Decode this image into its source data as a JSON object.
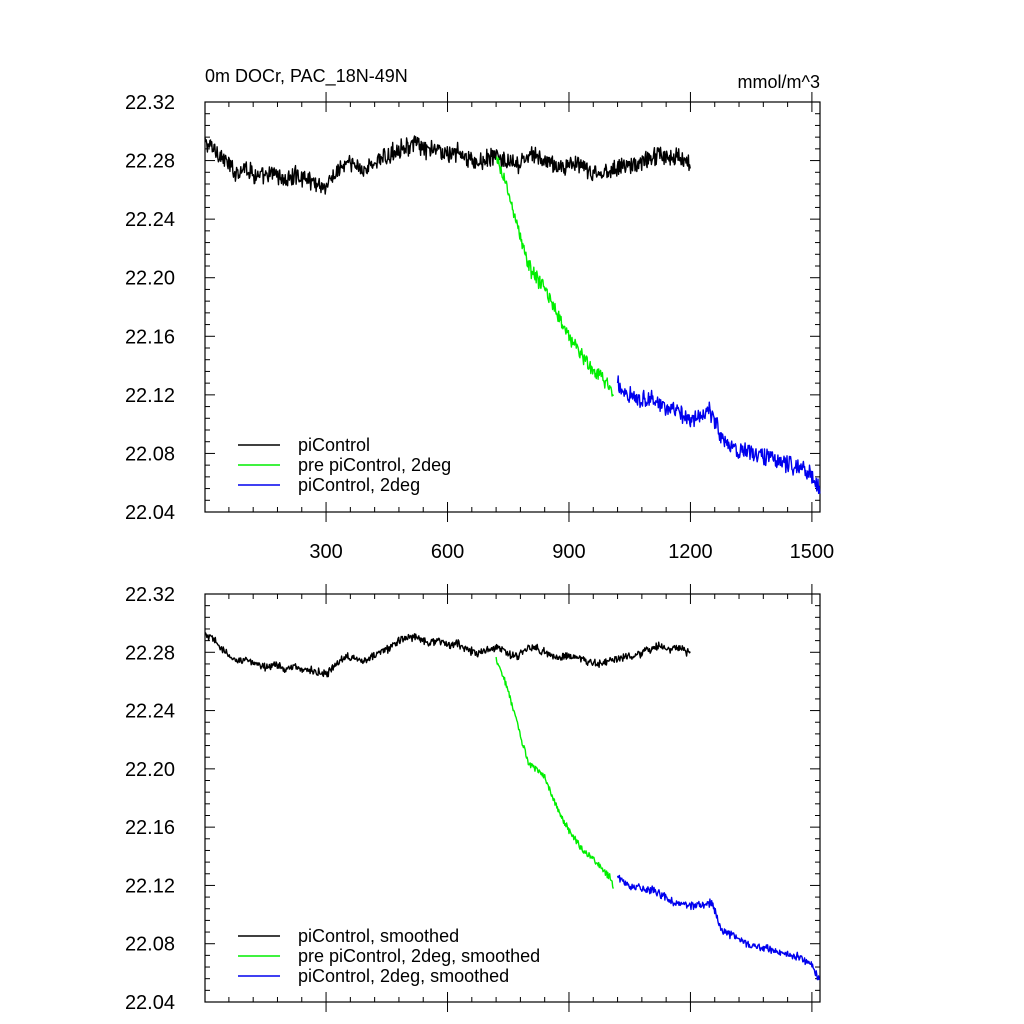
{
  "figure": {
    "title": "0m DOCr, PAC_18N-49N",
    "units": "mmol/m^3"
  },
  "chart_data": [
    {
      "type": "line",
      "title": "0m DOCr, PAC_18N-49N",
      "units": "mmol/m^3",
      "xlim": [
        1,
        1520
      ],
      "ylim": [
        22.04,
        22.32
      ],
      "x_ticks": [
        300,
        600,
        900,
        1200,
        1500
      ],
      "x_tick_labels": [
        "300",
        "600",
        "900",
        "1200",
        "1500"
      ],
      "y_ticks": [
        22.04,
        22.08,
        22.12,
        22.16,
        22.2,
        22.24,
        22.28,
        22.32
      ],
      "y_tick_labels": [
        "22.04",
        "22.08",
        "22.12",
        "22.16",
        "22.20",
        "22.24",
        "22.28",
        "22.32"
      ],
      "grid": false,
      "legend_position": "bottom-left",
      "series": [
        {
          "name": "piControl",
          "color": "#000000",
          "x": [
            1,
            25,
            50,
            75,
            100,
            125,
            150,
            175,
            200,
            225,
            250,
            275,
            300,
            325,
            350,
            375,
            400,
            425,
            450,
            475,
            500,
            525,
            550,
            575,
            600,
            625,
            650,
            675,
            700,
            725,
            750,
            775,
            800,
            825,
            850,
            875,
            900,
            925,
            950,
            975,
            1000,
            1025,
            1050,
            1075,
            1100,
            1125,
            1150,
            1175,
            1200
          ],
          "y": [
            22.292,
            22.288,
            22.28,
            22.272,
            22.276,
            22.27,
            22.268,
            22.272,
            22.266,
            22.27,
            22.268,
            22.265,
            22.262,
            22.272,
            22.278,
            22.276,
            22.274,
            22.28,
            22.282,
            22.288,
            22.29,
            22.291,
            22.286,
            22.288,
            22.284,
            22.286,
            22.281,
            22.278,
            22.282,
            22.283,
            22.278,
            22.276,
            22.284,
            22.282,
            22.279,
            22.275,
            22.278,
            22.276,
            22.272,
            22.27,
            22.274,
            22.276,
            22.277,
            22.278,
            22.282,
            22.285,
            22.281,
            22.283,
            22.278
          ],
          "noise": 0.005
        },
        {
          "name": "pre piControl, 2deg",
          "color": "#00ee00",
          "x": [
            720,
            740,
            760,
            780,
            800,
            820,
            840,
            860,
            880,
            900,
            920,
            940,
            960,
            980,
            1000,
            1010
          ],
          "y": [
            22.28,
            22.268,
            22.248,
            22.228,
            22.208,
            22.2,
            22.192,
            22.182,
            22.17,
            22.16,
            22.152,
            22.144,
            22.136,
            22.132,
            22.126,
            22.118
          ],
          "noise": 0.004
        },
        {
          "name": "piControl, 2deg",
          "color": "#0000ee",
          "x": [
            1020,
            1050,
            1075,
            1100,
            1125,
            1150,
            1175,
            1200,
            1225,
            1250,
            1265,
            1275,
            1300,
            1325,
            1350,
            1375,
            1400,
            1425,
            1450,
            1475,
            1500,
            1520
          ],
          "y": [
            22.126,
            22.12,
            22.118,
            22.117,
            22.114,
            22.11,
            22.106,
            22.104,
            22.106,
            22.108,
            22.1,
            22.09,
            22.086,
            22.082,
            22.08,
            22.079,
            22.078,
            22.074,
            22.072,
            22.07,
            22.064,
            22.054
          ],
          "noise": 0.005
        }
      ]
    },
    {
      "type": "line",
      "xlim": [
        1,
        1520
      ],
      "ylim": [
        22.04,
        22.32
      ],
      "y_ticks": [
        22.04,
        22.08,
        22.12,
        22.16,
        22.2,
        22.24,
        22.28,
        22.32
      ],
      "y_tick_labels": [
        "22.04",
        "22.08",
        "22.12",
        "22.16",
        "22.20",
        "22.24",
        "22.28",
        "22.32"
      ],
      "grid": false,
      "legend_position": "bottom-left",
      "series": [
        {
          "name": "piControl, smoothed",
          "color": "#000000",
          "x": [
            1,
            25,
            50,
            75,
            100,
            125,
            150,
            175,
            200,
            225,
            250,
            275,
            300,
            325,
            350,
            375,
            400,
            425,
            450,
            475,
            500,
            525,
            550,
            575,
            600,
            625,
            650,
            675,
            700,
            725,
            750,
            775,
            800,
            825,
            850,
            875,
            900,
            925,
            950,
            975,
            1000,
            1025,
            1050,
            1075,
            1100,
            1125,
            1150,
            1175,
            1200
          ],
          "y": [
            22.292,
            22.288,
            22.28,
            22.274,
            22.276,
            22.271,
            22.27,
            22.272,
            22.268,
            22.27,
            22.268,
            22.267,
            22.264,
            22.272,
            22.278,
            22.276,
            22.274,
            22.279,
            22.282,
            22.287,
            22.29,
            22.291,
            22.287,
            22.288,
            22.285,
            22.286,
            22.282,
            22.279,
            22.282,
            22.283,
            22.279,
            22.277,
            22.284,
            22.282,
            22.279,
            22.276,
            22.278,
            22.276,
            22.273,
            22.272,
            22.274,
            22.276,
            22.277,
            22.278,
            22.282,
            22.285,
            22.282,
            22.283,
            22.279
          ],
          "noise": 0.0022
        },
        {
          "name": "pre piControl, 2deg, smoothed",
          "color": "#00ee00",
          "x": [
            720,
            740,
            760,
            780,
            800,
            820,
            840,
            860,
            880,
            900,
            920,
            940,
            960,
            980,
            1000,
            1010
          ],
          "y": [
            22.276,
            22.262,
            22.244,
            22.222,
            22.204,
            22.2,
            22.194,
            22.18,
            22.168,
            22.158,
            22.15,
            22.142,
            22.138,
            22.132,
            22.126,
            22.12
          ],
          "noise": 0.0018
        },
        {
          "name": "piControl, 2deg, smoothed",
          "color": "#0000ee",
          "x": [
            1020,
            1050,
            1075,
            1100,
            1125,
            1150,
            1175,
            1200,
            1225,
            1250,
            1265,
            1275,
            1300,
            1325,
            1350,
            1375,
            1400,
            1425,
            1450,
            1475,
            1500,
            1520
          ],
          "y": [
            22.126,
            22.12,
            22.119,
            22.117,
            22.114,
            22.11,
            22.107,
            22.106,
            22.106,
            22.108,
            22.1,
            22.09,
            22.086,
            22.082,
            22.078,
            22.078,
            22.076,
            22.074,
            22.072,
            22.07,
            22.066,
            22.054
          ],
          "noise": 0.0022
        }
      ]
    }
  ]
}
